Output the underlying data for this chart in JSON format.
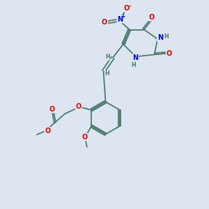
{
  "bg_color": "#dde6f0",
  "bond_color": "#4a7a6a",
  "atom_colors": {
    "O": "#dd0000",
    "N": "#0000cc",
    "C": "#4a7a6a",
    "H": "#4a7a6a"
  },
  "figsize": [
    3.0,
    3.0
  ],
  "dpi": 100
}
